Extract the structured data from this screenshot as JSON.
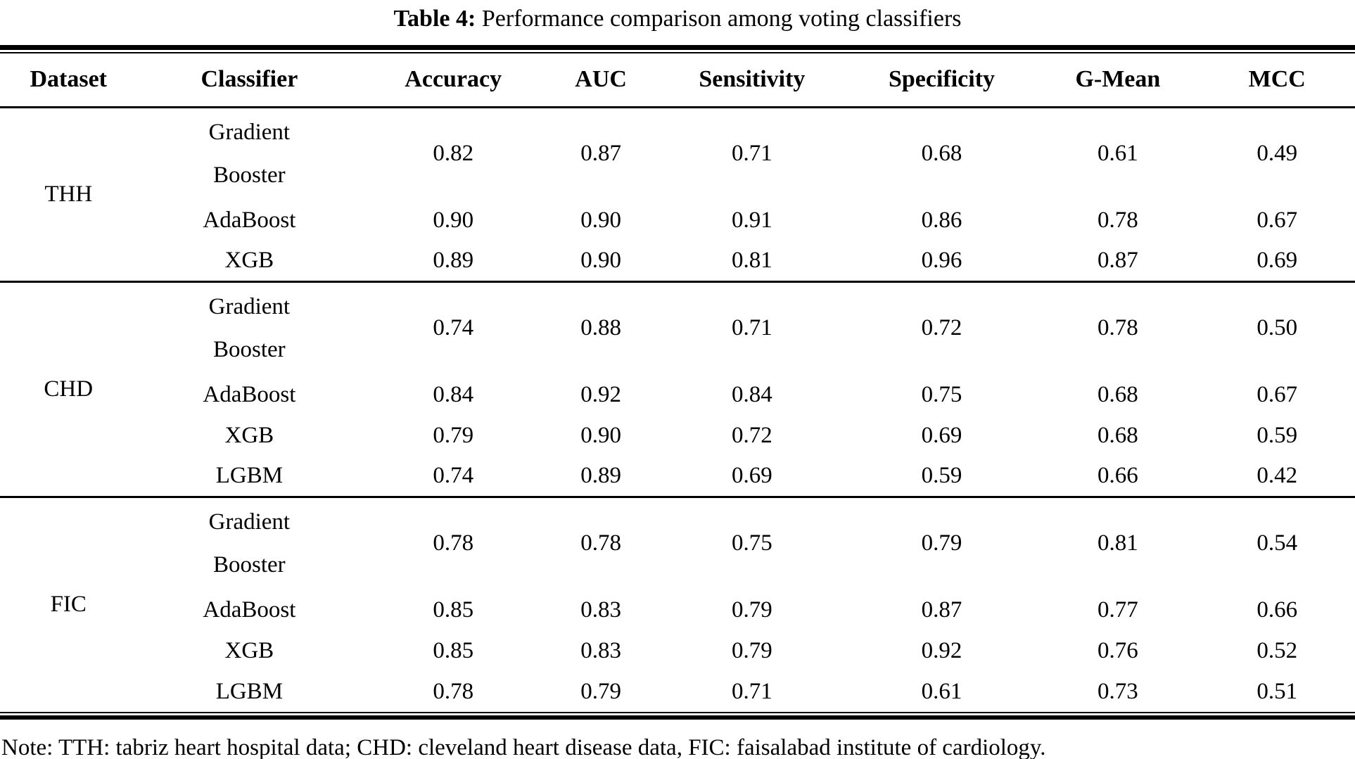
{
  "caption": {
    "label": "Table 4:",
    "text": "Performance comparison among voting classifiers"
  },
  "table": {
    "headers": [
      "Dataset",
      "Classifier",
      "Accuracy",
      "AUC",
      "Sensitivity",
      "Specificity",
      "G-Mean",
      "MCC"
    ],
    "groups": [
      {
        "dataset": "THH",
        "rows": [
          {
            "classifier": "Gradient Booster",
            "values": [
              "0.82",
              "0.87",
              "0.71",
              "0.68",
              "0.61",
              "0.49"
            ]
          },
          {
            "classifier": "AdaBoost",
            "values": [
              "0.90",
              "0.90",
              "0.91",
              "0.86",
              "0.78",
              "0.67"
            ]
          },
          {
            "classifier": "XGB",
            "values": [
              "0.89",
              "0.90",
              "0.81",
              "0.96",
              "0.87",
              "0.69"
            ]
          }
        ]
      },
      {
        "dataset": "CHD",
        "rows": [
          {
            "classifier": "Gradient Booster",
            "values": [
              "0.74",
              "0.88",
              "0.71",
              "0.72",
              "0.78",
              "0.50"
            ]
          },
          {
            "classifier": "AdaBoost",
            "values": [
              "0.84",
              "0.92",
              "0.84",
              "0.75",
              "0.68",
              "0.67"
            ]
          },
          {
            "classifier": "XGB",
            "values": [
              "0.79",
              "0.90",
              "0.72",
              "0.69",
              "0.68",
              "0.59"
            ]
          },
          {
            "classifier": "LGBM",
            "values": [
              "0.74",
              "0.89",
              "0.69",
              "0.59",
              "0.66",
              "0.42"
            ]
          }
        ]
      },
      {
        "dataset": "FIC",
        "rows": [
          {
            "classifier": "Gradient Booster",
            "values": [
              "0.78",
              "0.78",
              "0.75",
              "0.79",
              "0.81",
              "0.54"
            ]
          },
          {
            "classifier": "AdaBoost",
            "values": [
              "0.85",
              "0.83",
              "0.79",
              "0.87",
              "0.77",
              "0.66"
            ]
          },
          {
            "classifier": "XGB",
            "values": [
              "0.85",
              "0.83",
              "0.79",
              "0.92",
              "0.76",
              "0.52"
            ]
          },
          {
            "classifier": "LGBM",
            "values": [
              "0.78",
              "0.79",
              "0.71",
              "0.61",
              "0.73",
              "0.51"
            ]
          }
        ]
      }
    ]
  },
  "note": "Note: TTH: tabriz heart hospital data; CHD: cleveland heart disease data, FIC: faisalabad institute of cardiology."
}
